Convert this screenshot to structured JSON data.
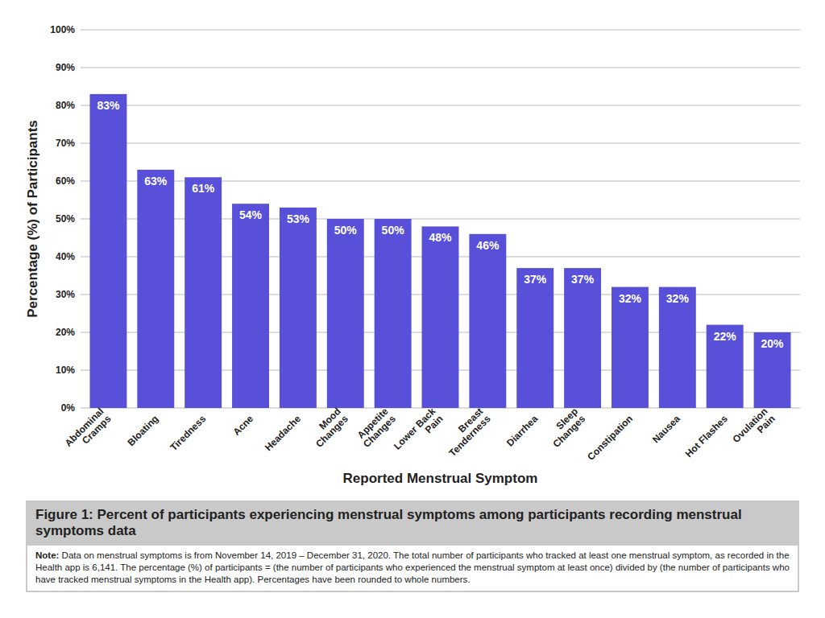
{
  "chart_data": {
    "type": "bar",
    "title": "Figure 1: Percent of participants experiencing menstrual symptoms among participants recording menstrual symptoms data",
    "x_label": "Reported Menstrual Symptom",
    "y_label": "Percentage (%) of Participants",
    "annotations": [
      "Note: Data on menstrual symptoms is from November 14, 2019 – December 31, 2020. The total number of participants who tracked at least one menstrual symptom, as recorded in the Health app is 6,141. The percentage (%) of participants = (the number of participants who experienced the menstrual symptom at least once) divided by (the number of participants who have tracked menstrual symptoms in the Health app). Percentages have been rounded to whole numbers."
    ],
    "categories": [
      "Abdominal Cramps",
      "Bloating",
      "Tiredness",
      "Acne",
      "Headache",
      "Mood Changes",
      "Appetite Changes",
      "Lower Back Pain",
      "Breast Tenderness",
      "Diarrhea",
      "Sleep Changes",
      "Constipation",
      "Nausea",
      "Hot Flashes",
      "Ovulation Pain"
    ],
    "values": [
      83,
      63,
      61,
      54,
      53,
      50,
      50,
      48,
      46,
      37,
      37,
      32,
      32,
      22,
      20
    ],
    "value_labels": [
      "83%",
      "63%",
      "61%",
      "54%",
      "53%",
      "50%",
      "50%",
      "48%",
      "46%",
      "37%",
      "37%",
      "32%",
      "32%",
      "22%",
      "20%"
    ],
    "data_labels": true,
    "color": "#5850d8",
    "ylim": [
      0,
      100
    ],
    "yticks": [
      {
        "value": 0,
        "label": "0%"
      },
      {
        "value": 10,
        "label": "10%"
      },
      {
        "value": 20,
        "label": "20%"
      },
      {
        "value": 30,
        "label": "30%"
      },
      {
        "value": 40,
        "label": "40%"
      },
      {
        "value": 50,
        "label": "50%"
      },
      {
        "value": 60,
        "label": "60%"
      },
      {
        "value": 70,
        "label": "70%"
      },
      {
        "value": 80,
        "label": "80%"
      },
      {
        "value": 90,
        "label": "90%"
      },
      {
        "value": 100,
        "label": "100%"
      }
    ],
    "grid": true
  }
}
